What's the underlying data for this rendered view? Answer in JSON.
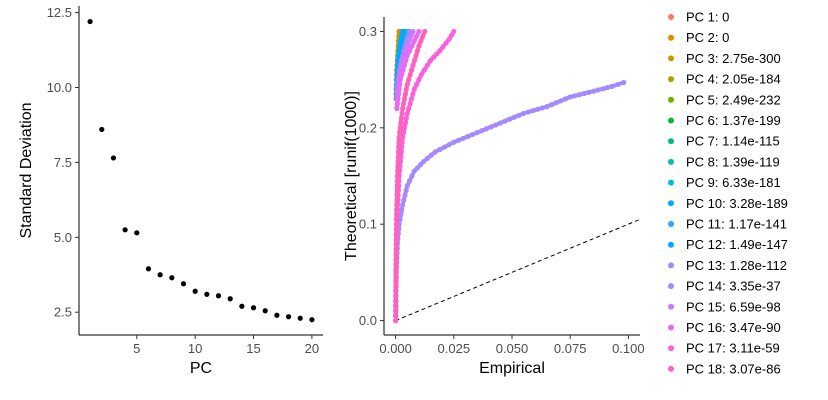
{
  "chart_data": [
    {
      "type": "scatter",
      "xlabel": "PC",
      "ylabel": "Standard Deviation",
      "xlim": [
        0.05,
        20.95
      ],
      "ylim": [
        1.74,
        12.72
      ],
      "x_ticks": [
        5,
        10,
        15,
        20
      ],
      "x_tick_labels": [
        "5",
        "10",
        "15",
        "20"
      ],
      "y_ticks": [
        2.5,
        5.0,
        7.5,
        10.0,
        12.5
      ],
      "y_tick_labels": [
        "2.5",
        "5.0",
        "7.5",
        "10.0",
        "12.5"
      ],
      "grid": false,
      "point_color": "#000000",
      "x": [
        1,
        2,
        3,
        4,
        5,
        6,
        7,
        8,
        9,
        10,
        11,
        12,
        13,
        14,
        15,
        16,
        17,
        18,
        19,
        20
      ],
      "y": [
        12.2,
        8.6,
        7.65,
        5.25,
        5.15,
        3.95,
        3.75,
        3.65,
        3.45,
        3.2,
        3.1,
        3.05,
        2.95,
        2.7,
        2.65,
        2.55,
        2.4,
        2.35,
        2.3,
        2.25
      ]
    },
    {
      "type": "scatter",
      "xlabel": "Empirical",
      "ylabel": "Theoretical [runif(1000)]",
      "xlim": [
        -0.005,
        0.105
      ],
      "ylim": [
        -0.015,
        0.315
      ],
      "x_ticks": [
        0.0,
        0.025,
        0.05,
        0.075,
        0.1
      ],
      "x_tick_labels": [
        "0.000",
        "0.025",
        "0.050",
        "0.075",
        "0.100"
      ],
      "y_ticks": [
        0.0,
        0.1,
        0.2,
        0.3
      ],
      "y_tick_labels": [
        "0.0",
        "0.1",
        "0.2",
        "0.3"
      ],
      "grid": false,
      "reference_line": {
        "slope": 1,
        "intercept": 0,
        "style": "dashed"
      },
      "legend_position": "right",
      "series": [
        {
          "name": "PC 1: 0",
          "color": "#F8766D",
          "points": [
            [
              0.0002,
              0.23
            ],
            [
              0.0005,
              0.26
            ],
            [
              0.001,
              0.28
            ],
            [
              0.0015,
              0.3
            ]
          ]
        },
        {
          "name": "PC 2: 0",
          "color": "#E58700",
          "points": [
            [
              0.0002,
              0.23
            ],
            [
              0.0005,
              0.26
            ],
            [
              0.001,
              0.28
            ],
            [
              0.0015,
              0.3
            ]
          ]
        },
        {
          "name": "PC 3: 2.75e-300",
          "color": "#C99800",
          "points": [
            [
              0.0003,
              0.24
            ],
            [
              0.0008,
              0.27
            ],
            [
              0.0015,
              0.29
            ],
            [
              0.002,
              0.3
            ]
          ]
        },
        {
          "name": "PC 4: 2.05e-184",
          "color": "#A3A500",
          "points": [
            [
              0.0003,
              0.24
            ],
            [
              0.001,
              0.27
            ],
            [
              0.002,
              0.29
            ],
            [
              0.003,
              0.3
            ]
          ]
        },
        {
          "name": "PC 5: 2.49e-232",
          "color": "#6BB100",
          "points": [
            [
              0.0003,
              0.24
            ],
            [
              0.001,
              0.27
            ],
            [
              0.002,
              0.29
            ],
            [
              0.003,
              0.3
            ]
          ]
        },
        {
          "name": "PC 6: 1.37e-199",
          "color": "#00BA38",
          "points": [
            [
              0.0003,
              0.24
            ],
            [
              0.0015,
              0.27
            ],
            [
              0.003,
              0.285
            ],
            [
              0.0045,
              0.3
            ]
          ]
        },
        {
          "name": "PC 7: 1.14e-115",
          "color": "#00BF7D",
          "points": [
            [
              0.0005,
              0.24
            ],
            [
              0.002,
              0.27
            ],
            [
              0.004,
              0.285
            ],
            [
              0.006,
              0.3
            ]
          ]
        },
        {
          "name": "PC 8: 1.39e-119",
          "color": "#00C0AF",
          "points": [
            [
              0.0005,
              0.24
            ],
            [
              0.002,
              0.27
            ],
            [
              0.003,
              0.285
            ],
            [
              0.0055,
              0.3
            ]
          ]
        },
        {
          "name": "PC 9: 6.33e-181",
          "color": "#00BCD8",
          "points": [
            [
              0.0003,
              0.24
            ],
            [
              0.001,
              0.27
            ],
            [
              0.002,
              0.29
            ],
            [
              0.003,
              0.3
            ]
          ]
        },
        {
          "name": "PC 10: 3.28e-189",
          "color": "#00B0F6",
          "points": [
            [
              0.0003,
              0.24
            ],
            [
              0.001,
              0.27
            ],
            [
              0.002,
              0.29
            ],
            [
              0.003,
              0.3
            ]
          ]
        },
        {
          "name": "PC 11: 1.17e-141",
          "color": "#35A2FF",
          "points": [
            [
              0.0003,
              0.24
            ],
            [
              0.0015,
              0.27
            ],
            [
              0.0025,
              0.285
            ],
            [
              0.004,
              0.3
            ]
          ]
        },
        {
          "name": "PC 12: 1.49e-147",
          "color": "#00A9FF",
          "points": [
            [
              0.0003,
              0.23
            ],
            [
              0.001,
              0.26
            ],
            [
              0.002,
              0.28
            ],
            [
              0.0035,
              0.3
            ]
          ]
        },
        {
          "name": "PC 13: 1.28e-112",
          "color": "#9590FF",
          "points": [
            [
              0.0005,
              0.24
            ],
            [
              0.002,
              0.265
            ],
            [
              0.004,
              0.285
            ],
            [
              0.006,
              0.3
            ]
          ]
        },
        {
          "name": "PC 14: 3.35e-37",
          "color": "#A58AFF",
          "points": [
            [
              0.0,
              0.0
            ],
            [
              0.0003,
              0.05
            ],
            [
              0.0008,
              0.08
            ],
            [
              0.0015,
              0.1
            ],
            [
              0.003,
              0.12
            ],
            [
              0.005,
              0.14
            ],
            [
              0.008,
              0.155
            ],
            [
              0.012,
              0.165
            ],
            [
              0.017,
              0.175
            ],
            [
              0.025,
              0.185
            ],
            [
              0.035,
              0.195
            ],
            [
              0.045,
              0.205
            ],
            [
              0.055,
              0.215
            ],
            [
              0.065,
              0.222
            ],
            [
              0.075,
              0.232
            ],
            [
              0.085,
              0.238
            ],
            [
              0.093,
              0.243
            ],
            [
              0.098,
              0.247
            ]
          ]
        },
        {
          "name": "PC 15: 6.59e-98",
          "color": "#C77CFF",
          "points": [
            [
              0.0005,
              0.23
            ],
            [
              0.002,
              0.26
            ],
            [
              0.004,
              0.28
            ],
            [
              0.0075,
              0.3
            ]
          ]
        },
        {
          "name": "PC 16: 3.47e-90",
          "color": "#E76BF3",
          "points": [
            [
              0.0005,
              0.22
            ],
            [
              0.002,
              0.25
            ],
            [
              0.005,
              0.275
            ],
            [
              0.008,
              0.29
            ],
            [
              0.01,
              0.3
            ]
          ]
        },
        {
          "name": "PC 17: 3.11e-59",
          "color": "#FA62DB",
          "points": [
            [
              0.0,
              0.0
            ],
            [
              0.0002,
              0.05
            ],
            [
              0.0005,
              0.1
            ],
            [
              0.0015,
              0.15
            ],
            [
              0.003,
              0.19
            ],
            [
              0.005,
              0.215
            ],
            [
              0.008,
              0.24
            ],
            [
              0.011,
              0.255
            ],
            [
              0.015,
              0.27
            ],
            [
              0.019,
              0.28
            ],
            [
              0.023,
              0.292
            ],
            [
              0.025,
              0.3
            ]
          ]
        },
        {
          "name": "PC 18: 3.07e-86",
          "color": "#FF62BC",
          "points": [
            [
              0.0,
              0.0
            ],
            [
              0.0003,
              0.1
            ],
            [
              0.0008,
              0.15
            ],
            [
              0.0015,
              0.19
            ],
            [
              0.003,
              0.22
            ],
            [
              0.005,
              0.245
            ],
            [
              0.0075,
              0.265
            ],
            [
              0.01,
              0.285
            ],
            [
              0.0125,
              0.3
            ]
          ]
        }
      ]
    }
  ]
}
